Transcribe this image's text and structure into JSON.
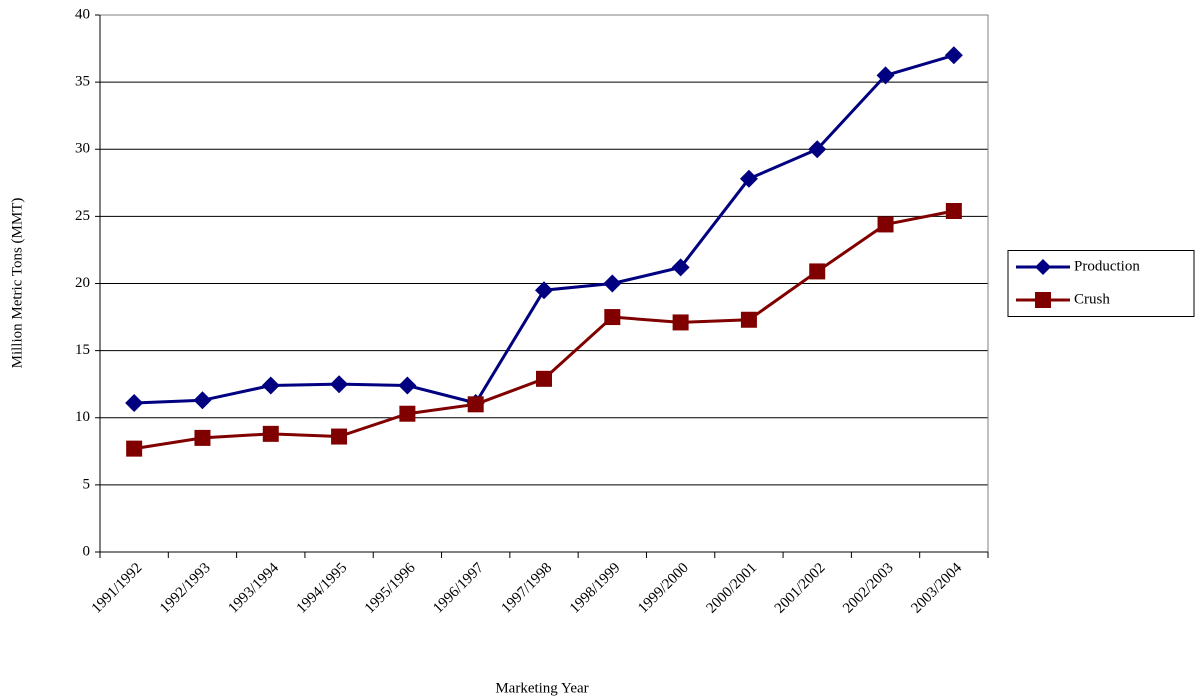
{
  "chart_data": {
    "type": "line",
    "x_label": "Marketing Year",
    "y_label": "Million Metric Tons (MMT)",
    "categories": [
      "1991/1992",
      "1992/1993",
      "1993/1994",
      "1994/1995",
      "1995/1996",
      "1996/1997",
      "1997/1998",
      "1998/1999",
      "1999/2000",
      "2000/2001",
      "2001/2002",
      "2002/2003",
      "2003/2004"
    ],
    "series": [
      {
        "name": "Production",
        "color": "#000080",
        "marker": "diamond",
        "values": [
          11.1,
          11.3,
          12.4,
          12.5,
          12.4,
          11.1,
          19.5,
          20.0,
          21.2,
          27.8,
          30.0,
          35.5,
          37.0
        ]
      },
      {
        "name": "Crush",
        "color": "#800000",
        "marker": "square",
        "values": [
          7.7,
          8.5,
          8.8,
          8.6,
          10.3,
          11.0,
          12.9,
          17.5,
          17.1,
          17.3,
          20.9,
          24.4,
          25.4
        ]
      }
    ],
    "ylim": [
      0,
      40
    ],
    "yticks": [
      0,
      5,
      10,
      15,
      20,
      25,
      30,
      35,
      40
    ],
    "grid": true,
    "legend": "right"
  }
}
